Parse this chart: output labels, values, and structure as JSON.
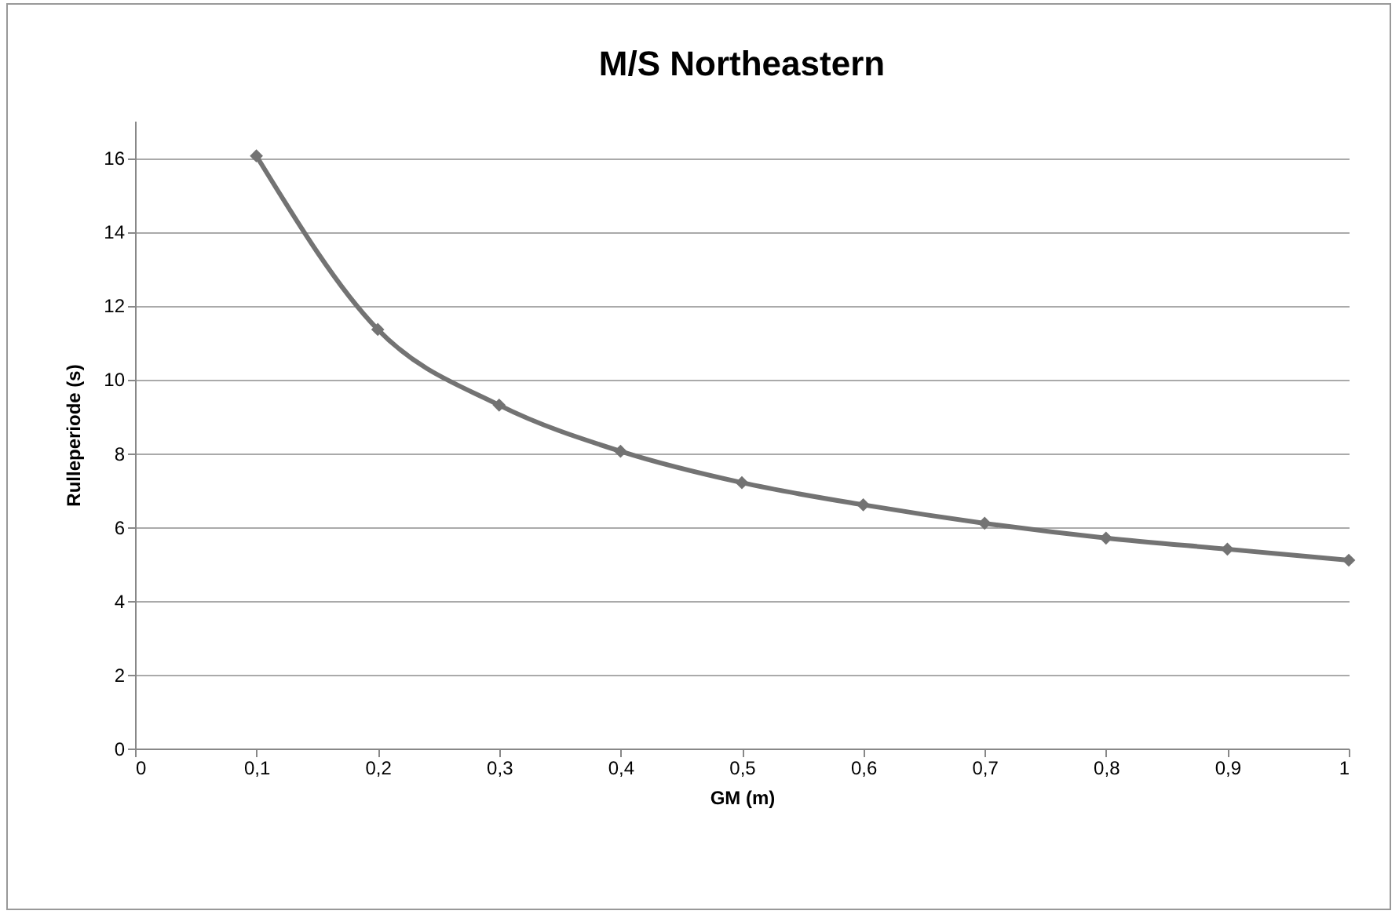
{
  "chart_data": {
    "type": "line",
    "title": "M/S Northeastern",
    "xlabel": "GM (m)",
    "ylabel": "Rulleperiode (s)",
    "x": [
      0.1,
      0.2,
      0.3,
      0.4,
      0.5,
      0.6,
      0.7,
      0.8,
      0.9,
      1
    ],
    "series": [
      {
        "color": "#737373",
        "values": [
          16.05,
          11.35,
          9.3,
          8.05,
          7.2,
          6.6,
          6.1,
          5.7,
          5.4,
          5.1
        ]
      }
    ],
    "xlim": [
      0,
      1
    ],
    "xticks": [
      0,
      {
        "value": 0.1,
        "label": "0,1"
      },
      {
        "value": 0.2,
        "label": "0,2"
      },
      {
        "value": 0.3,
        "label": "0,3"
      },
      {
        "value": 0.4,
        "label": "0,4"
      },
      {
        "value": 0.5,
        "label": "0,5"
      },
      {
        "value": 0.6,
        "label": "0,6"
      },
      {
        "value": 0.7,
        "label": "0,7"
      },
      {
        "value": 0.8,
        "label": "0,8"
      },
      {
        "value": 0.9,
        "label": "0,9"
      },
      1
    ],
    "ylim": [
      0,
      17
    ],
    "yticks": [
      0,
      2,
      4,
      6,
      8,
      10,
      12,
      14,
      16
    ],
    "grid": "y",
    "marker": "diamond",
    "line_style": "solid",
    "legend": false
  }
}
